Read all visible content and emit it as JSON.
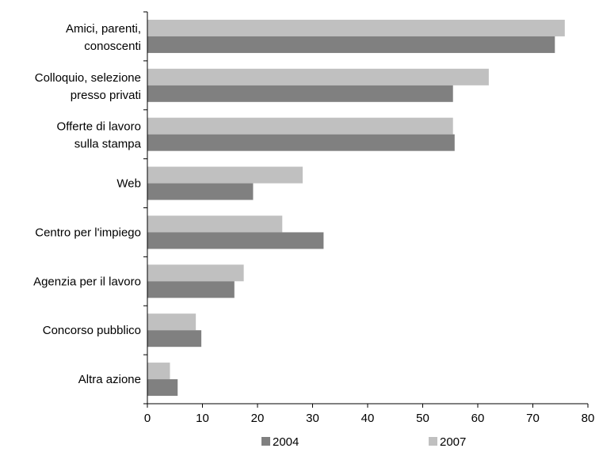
{
  "chart_data": {
    "type": "bar",
    "orientation": "horizontal",
    "categories": [
      [
        "Amici, parenti,",
        "conoscenti"
      ],
      [
        "Colloquio, selezione",
        "presso privati"
      ],
      [
        "Offerte di lavoro",
        "sulla stampa"
      ],
      [
        "Web"
      ],
      [
        "Centro per l'impiego"
      ],
      [
        "Agenzia per il lavoro"
      ],
      [
        "Concorso pubblico"
      ],
      [
        "Altra azione"
      ]
    ],
    "series": [
      {
        "name": "2004",
        "color": "#808080",
        "values": [
          74,
          55.5,
          55.8,
          19.2,
          32,
          15.8,
          9.8,
          5.5
        ]
      },
      {
        "name": "2007",
        "color": "#c0c0c0",
        "values": [
          75.8,
          62,
          55.5,
          28.2,
          24.5,
          17.5,
          8.8,
          4.1
        ]
      }
    ],
    "xlim": [
      0,
      80
    ],
    "xticks": [
      "0",
      "10",
      "20",
      "30",
      "40",
      "50",
      "60",
      "70",
      "80"
    ],
    "grid": false,
    "legend": {
      "position": "bottom",
      "entries": [
        "2004",
        "2007"
      ]
    },
    "title": "",
    "xlabel": "",
    "ylabel": ""
  }
}
